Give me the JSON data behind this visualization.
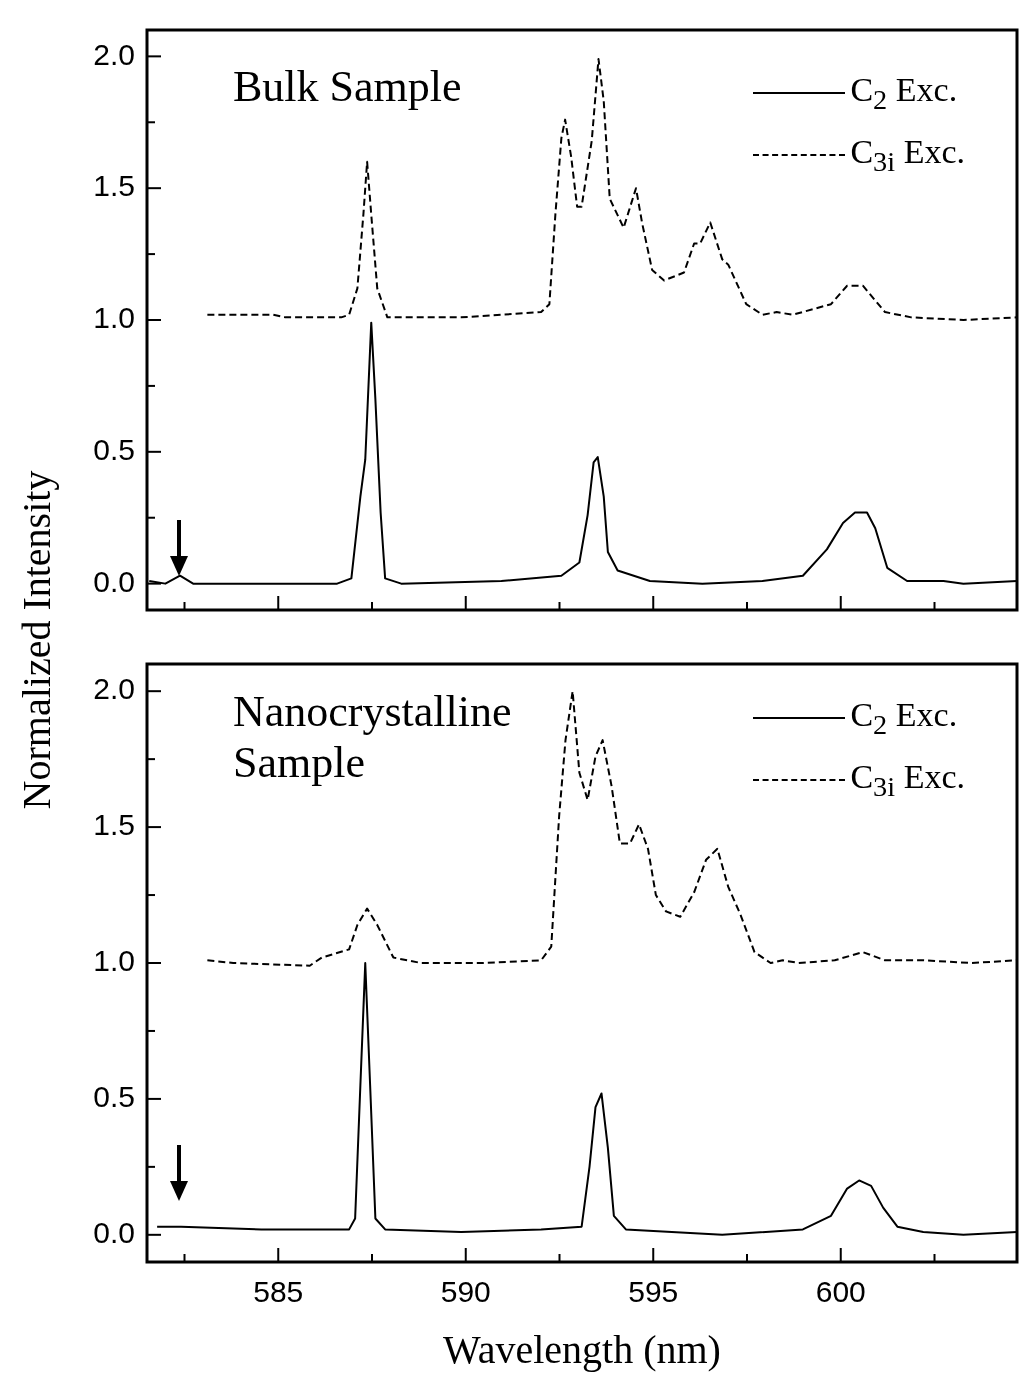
{
  "chart_data": [
    {
      "type": "line",
      "annotations": [
        "Bulk Sample"
      ],
      "ylabel": "Normalized Intensity",
      "xlim": [
        581.5,
        604.7
      ],
      "xticks": [
        {
          "value": 582.5,
          "label": null
        },
        585,
        {
          "value": 587.5,
          "label": null
        },
        590,
        {
          "value": 592.5,
          "label": null
        },
        595,
        {
          "value": 597.5,
          "label": null
        },
        600,
        {
          "value": 602.5,
          "label": null
        }
      ],
      "ylim": [
        -0.1,
        2.1
      ],
      "yticks": [
        {
          "value": 0,
          "label": "0.0"
        },
        {
          "value": 0.25,
          "label": null
        },
        {
          "value": 0.5,
          "label": "0.5"
        },
        {
          "value": 0.75,
          "label": null
        },
        {
          "value": 1,
          "label": "1.0"
        },
        {
          "value": 1.25,
          "label": null
        },
        {
          "value": 1.5,
          "label": "1.5"
        },
        {
          "value": 1.75,
          "label": null
        },
        {
          "value": 2,
          "label": "2.0"
        }
      ],
      "tick_labels": "y",
      "legend": "top right",
      "marker": "none",
      "series": [
        {
          "name": "C$_{2}$ Exc.",
          "color": "#000000",
          "line_style": "solid",
          "x": [
            581.56,
            581.99,
            582.38,
            582.73,
            584.55,
            586.57,
            586.95,
            587.19,
            587.32,
            587.48,
            587.59,
            587.73,
            587.85,
            588.28,
            590.95,
            592.55,
            593.03,
            593.25,
            593.41,
            593.52,
            593.68,
            593.79,
            594.05,
            594.91,
            596.31,
            597.91,
            598.99,
            599.63,
            600.06,
            600.38,
            600.7,
            600.92,
            601.24,
            601.77,
            602.74,
            603.27,
            604.7
          ],
          "values": [
            0.01,
            0,
            0.03,
            0,
            0,
            0,
            0.02,
            0.33,
            0.47,
            0.99,
            0.7,
            0.27,
            0.02,
            0,
            0.01,
            0.03,
            0.08,
            0.26,
            0.46,
            0.48,
            0.33,
            0.12,
            0.05,
            0.01,
            0,
            0.01,
            0.03,
            0.13,
            0.23,
            0.27,
            0.27,
            0.21,
            0.06,
            0.01,
            0.01,
            0,
            0.01
          ]
        },
        {
          "name": "C$_{3i}$ Exc.",
          "color": "#000000",
          "line_style": "dashed",
          "x": [
            583.11,
            584.87,
            585.19,
            586.68,
            586.89,
            587.11,
            587.27,
            587.37,
            587.48,
            587.64,
            587.91,
            589.88,
            590.95,
            592.01,
            592.23,
            592.39,
            592.55,
            592.65,
            592.81,
            592.97,
            593.09,
            593.36,
            593.54,
            593.68,
            593.84,
            594.21,
            594.54,
            594.7,
            594.97,
            595.29,
            595.82,
            596.09,
            596.25,
            596.52,
            596.84,
            597,
            597.48,
            597.91,
            598.29,
            598.72,
            599.74,
            600.17,
            600.59,
            601.18,
            601.88,
            603.27,
            604.7
          ],
          "values": [
            1.02,
            1.02,
            1.01,
            1.01,
            1.02,
            1.12,
            1.4,
            1.6,
            1.4,
            1.12,
            1.01,
            1.01,
            1.02,
            1.03,
            1.06,
            1.4,
            1.69,
            1.76,
            1.62,
            1.43,
            1.43,
            1.68,
            1.99,
            1.83,
            1.46,
            1.35,
            1.5,
            1.37,
            1.19,
            1.15,
            1.18,
            1.29,
            1.29,
            1.37,
            1.23,
            1.21,
            1.06,
            1.02,
            1.03,
            1.02,
            1.06,
            1.13,
            1.13,
            1.03,
            1.01,
            1,
            1.01
          ]
        }
      ]
    },
    {
      "type": "line",
      "annotations": [
        "Nanocrystalline Sample"
      ],
      "xlabel": "Wavelength (nm)",
      "xlim": [
        581.5,
        604.7
      ],
      "xticks": [
        {
          "value": 582.5,
          "label": null
        },
        585,
        {
          "value": 587.5,
          "label": null
        },
        590,
        {
          "value": 592.5,
          "label": null
        },
        595,
        {
          "value": 597.5,
          "label": null
        },
        600,
        {
          "value": 602.5,
          "label": null
        }
      ],
      "ylim": [
        -0.1,
        2.1
      ],
      "yticks": [
        {
          "value": 0,
          "label": "0.0"
        },
        {
          "value": 0.25,
          "label": null
        },
        {
          "value": 0.5,
          "label": "0.5"
        },
        {
          "value": 0.75,
          "label": null
        },
        {
          "value": 1,
          "label": "1.0"
        },
        {
          "value": 1.25,
          "label": null
        },
        {
          "value": 1.5,
          "label": "1.5"
        },
        {
          "value": 1.75,
          "label": null
        },
        {
          "value": 2,
          "label": "2.0"
        }
      ],
      "legend": "top right",
      "marker": "none",
      "series": [
        {
          "name": "C$_{2}$ Exc.",
          "color": "#000000",
          "line_style": "solid",
          "x": [
            581.77,
            582.41,
            584.55,
            586.89,
            587.05,
            587.19,
            587.32,
            587.45,
            587.59,
            587.85,
            589.88,
            592.01,
            593.09,
            593.3,
            593.46,
            593.62,
            593.79,
            593.95,
            594.27,
            596.84,
            598.99,
            599.74,
            600.17,
            600.49,
            600.81,
            601.13,
            601.51,
            602.2,
            603.27,
            604.7
          ],
          "values": [
            0.03,
            0.03,
            0.02,
            0.02,
            0.06,
            0.55,
            1,
            0.55,
            0.06,
            0.02,
            0.01,
            0.02,
            0.03,
            0.25,
            0.47,
            0.52,
            0.32,
            0.07,
            0.02,
            0,
            0.02,
            0.07,
            0.17,
            0.2,
            0.18,
            0.1,
            0.03,
            0.01,
            0,
            0.01
          ]
        },
        {
          "name": "C$_{3i}$ Exc.",
          "color": "#000000",
          "line_style": "dashed",
          "x": [
            583.11,
            583.8,
            585.84,
            586.16,
            586.89,
            587.11,
            587.37,
            587.64,
            588.07,
            588.81,
            590.41,
            592.01,
            592.28,
            592.49,
            592.66,
            592.85,
            593.03,
            593.25,
            593.46,
            593.65,
            593.89,
            594.11,
            594.38,
            594.62,
            594.86,
            595.07,
            595.34,
            595.72,
            596.09,
            596.41,
            596.71,
            597,
            597.32,
            597.7,
            598.13,
            598.45,
            598.88,
            599.84,
            600.59,
            601.18,
            602.2,
            603.49,
            604.7
          ],
          "values": [
            1.01,
            1,
            0.99,
            1.02,
            1.05,
            1.14,
            1.2,
            1.14,
            1.02,
            1,
            1,
            1.01,
            1.06,
            1.54,
            1.82,
            2,
            1.7,
            1.6,
            1.76,
            1.82,
            1.65,
            1.44,
            1.44,
            1.51,
            1.42,
            1.25,
            1.19,
            1.17,
            1.26,
            1.38,
            1.42,
            1.28,
            1.18,
            1.04,
            1,
            1.01,
            1,
            1.01,
            1.04,
            1.01,
            1.01,
            1,
            1.01
          ]
        }
      ]
    }
  ]
}
